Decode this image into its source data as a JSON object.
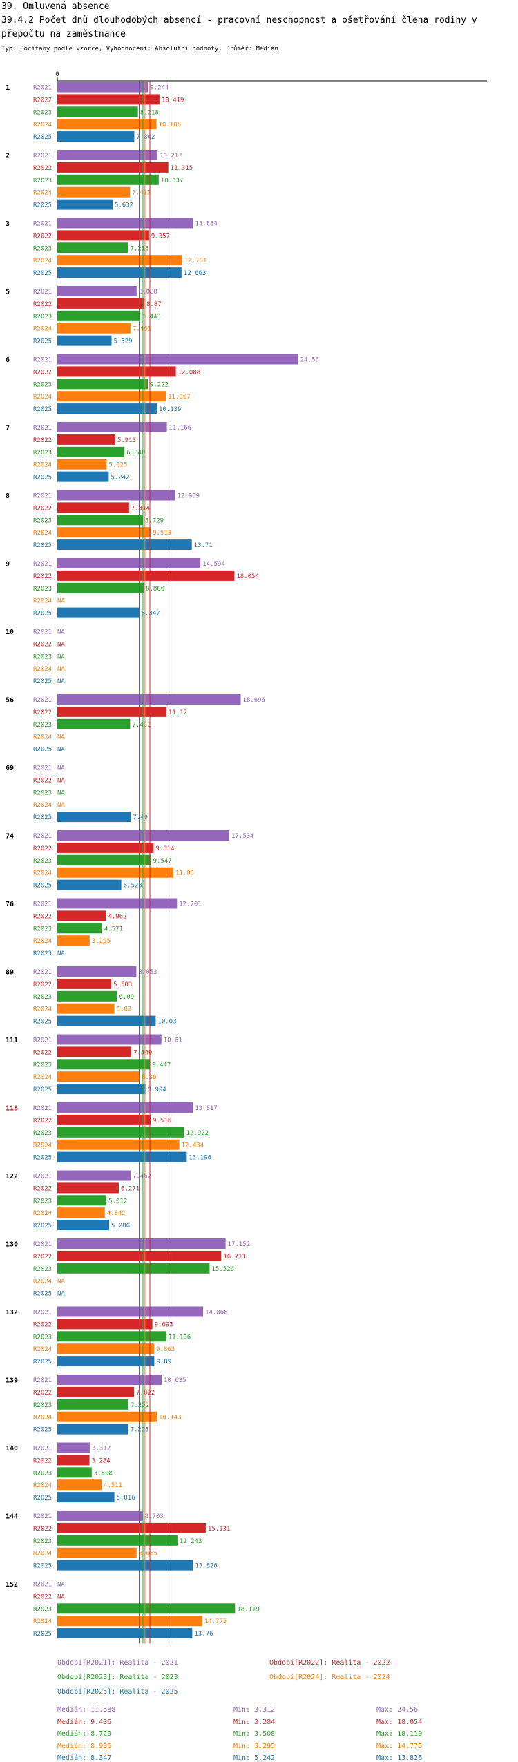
{
  "header": {
    "section_title": "39. Omluvená absence",
    "chart_title": "39.4.2 Počet dnů dlouhodobých absencí - pracovní neschopnost a ošetřování člena rodiny v přepočtu na zaměstnance",
    "subtitle": "Typ: Počítaný podle vzorce, Vyhodnocení: Absolutní hodnoty, Průměr: Medián"
  },
  "colors": {
    "R2021": "#9467bd",
    "R2022": "#d62728",
    "R2023": "#2ca02c",
    "R2024": "#ff7f0e",
    "R2025": "#1f77b4",
    "highlight_group": "#d62728",
    "axis": "#000000"
  },
  "chart_data": {
    "type": "bar",
    "orientation": "horizontal",
    "axis_zero_label": "0",
    "xlim": [
      0,
      24.56
    ],
    "na_label": "NA",
    "highlighted_category": "113",
    "categories": [
      "1",
      "2",
      "3",
      "5",
      "6",
      "7",
      "8",
      "9",
      "10",
      "56",
      "69",
      "74",
      "76",
      "89",
      "111",
      "113",
      "122",
      "130",
      "132",
      "139",
      "140",
      "144",
      "152"
    ],
    "series": [
      {
        "name": "R2021",
        "values": [
          9.244,
          10.217,
          13.834,
          8.088,
          24.56,
          11.166,
          12.009,
          14.594,
          null,
          18.696,
          null,
          17.534,
          12.201,
          8.053,
          10.61,
          13.817,
          7.462,
          17.152,
          14.868,
          10.635,
          3.312,
          8.703,
          null
        ]
      },
      {
        "name": "R2022",
        "values": [
          10.419,
          11.315,
          9.357,
          8.87,
          12.088,
          5.913,
          7.314,
          18.054,
          null,
          11.12,
          null,
          9.814,
          4.962,
          5.503,
          7.549,
          9.516,
          6.271,
          16.713,
          9.693,
          7.822,
          3.284,
          15.131,
          null
        ]
      },
      {
        "name": "R2023",
        "values": [
          8.218,
          10.337,
          7.215,
          8.443,
          9.222,
          6.848,
          8.729,
          8.806,
          null,
          7.422,
          null,
          9.547,
          4.571,
          6.09,
          9.447,
          12.922,
          5.012,
          15.526,
          11.106,
          7.252,
          3.508,
          12.243,
          18.119
        ]
      },
      {
        "name": "R2024",
        "values": [
          10.108,
          7.412,
          12.731,
          7.461,
          11.067,
          5.025,
          9.513,
          null,
          null,
          null,
          null,
          11.83,
          3.295,
          5.82,
          8.36,
          12.434,
          4.842,
          null,
          9.863,
          10.143,
          4.511,
          8.085,
          14.775
        ]
      },
      {
        "name": "R2025",
        "values": [
          7.842,
          5.632,
          12.663,
          5.529,
          10.139,
          5.242,
          13.71,
          8.347,
          null,
          null,
          7.49,
          6.523,
          null,
          10.03,
          8.994,
          13.196,
          5.286,
          null,
          9.89,
          7.223,
          5.816,
          13.826,
          13.76
        ]
      }
    ],
    "value_labels": [
      [
        "9.244",
        "10.419",
        "8.218",
        "10.108",
        "7.842"
      ],
      [
        "10.217",
        "11.315",
        "10.337",
        "7.412",
        "5.632"
      ],
      [
        "13.834",
        "9.357",
        "7.215",
        "12.731",
        "12.663"
      ],
      [
        "8.088",
        "8.87",
        "8.443",
        "7.461",
        "5.529"
      ],
      [
        "24.56",
        "12.088",
        "9.222",
        "11.067",
        "10.139"
      ],
      [
        "11.166",
        "5.913",
        "6.848",
        "5.025",
        "5.242"
      ],
      [
        "12.009",
        "7.314",
        "8.729",
        "9.513",
        "13.71"
      ],
      [
        "14.594",
        "18.054",
        "8.806",
        "NA",
        "8.347"
      ],
      [
        "NA",
        "NA",
        "NA",
        "NA",
        "NA"
      ],
      [
        "18.696",
        "11.12",
        "7.422",
        "NA",
        "NA"
      ],
      [
        "NA",
        "NA",
        "NA",
        "NA",
        "7.49"
      ],
      [
        "17.534",
        "9.814",
        "9.547",
        "11.83",
        "6.523"
      ],
      [
        "12.201",
        "4.962",
        "4.571",
        "3.295",
        "NA"
      ],
      [
        "8.053",
        "5.503",
        "6.09",
        "5.82",
        "10.03"
      ],
      [
        "10.61",
        "7.549",
        "9.447",
        "8.36",
        "8.994"
      ],
      [
        "13.817",
        "9.516",
        "12.922",
        "12.434",
        "13.196"
      ],
      [
        "7.462",
        "6.271",
        "5.012",
        "4.842",
        "5.286"
      ],
      [
        "17.152",
        "16.713",
        "15.526",
        "NA",
        "NA"
      ],
      [
        "14.868",
        "9.693",
        "11.106",
        "9.863",
        "9.89"
      ],
      [
        "10.635",
        "7.822",
        "7.252",
        "10.143",
        "7.223"
      ],
      [
        "3.312",
        "3.284",
        "3.508",
        "4.511",
        "5.816"
      ],
      [
        "8.703",
        "15.131",
        "12.243",
        "8.085",
        "13.826"
      ],
      [
        "NA",
        "NA",
        "18.119",
        "14.775",
        "13.76"
      ]
    ],
    "medians": {
      "R2021": 11.588,
      "R2022": 9.436,
      "R2023": 8.729,
      "R2024": 8.936,
      "R2025": 8.347
    }
  },
  "legend": [
    {
      "key": "R2021",
      "label": "Období[R2021]: Realita - 2021"
    },
    {
      "key": "R2022",
      "label": "Období[R2022]: Realita - 2022"
    },
    {
      "key": "R2023",
      "label": "Období[R2023]: Realita - 2023"
    },
    {
      "key": "R2024",
      "label": "Období[R2024]: Realita - 2024"
    },
    {
      "key": "R2025",
      "label": "Období[R2025]: Realita - 2025"
    }
  ],
  "stats": [
    {
      "key": "R2021",
      "median": "Medián: 11.588",
      "min": "Min: 3.312",
      "max": "Max: 24.56"
    },
    {
      "key": "R2022",
      "median": "Medián: 9.436",
      "min": "Min: 3.284",
      "max": "Max: 18.054"
    },
    {
      "key": "R2023",
      "median": "Medián: 8.729",
      "min": "Min: 3.508",
      "max": "Max: 18.119"
    },
    {
      "key": "R2024",
      "median": "Medián: 8.936",
      "min": "Min: 3.295",
      "max": "Max: 14.775"
    },
    {
      "key": "R2025",
      "median": "Medián: 8.347",
      "min": "Min: 5.242",
      "max": "Max: 13.826"
    }
  ]
}
